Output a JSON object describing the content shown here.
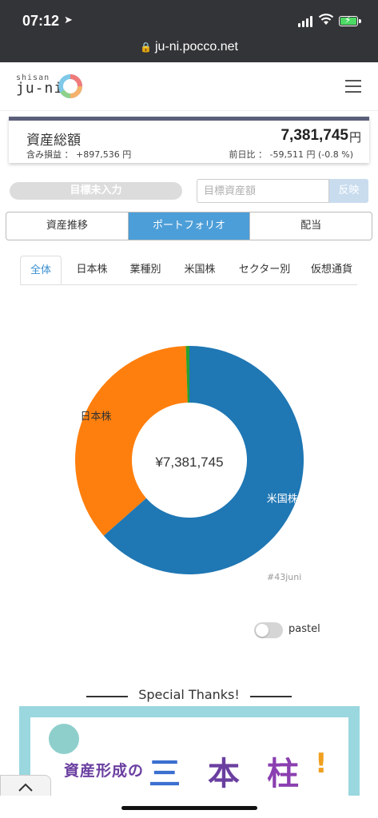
{
  "status_bar": {
    "time": "07:12"
  },
  "browser": {
    "url": "ju-ni.pocco.net"
  },
  "site": {
    "logo_small": "shisan",
    "logo_big": "ju-ni"
  },
  "summary": {
    "title": "資産総額",
    "total": "7,381,745",
    "currency": "円",
    "gain_label": "含み損益 ：",
    "gain_value": "+897,536 円",
    "day_label": "前日比 ：",
    "day_value": "-59,511 円 (-0.8 %)"
  },
  "target": {
    "badge": "目標未入力",
    "input_placeholder": "目標資産額",
    "button": "反映"
  },
  "main_tabs": [
    {
      "label": "資産推移",
      "active": false
    },
    {
      "label": "ポートフォリオ",
      "active": true
    },
    {
      "label": "配当",
      "active": false
    }
  ],
  "sub_tabs": [
    {
      "label": "全体",
      "active": true
    },
    {
      "label": "日本株",
      "active": false
    },
    {
      "label": "業種別",
      "active": false
    },
    {
      "label": "米国株",
      "active": false
    },
    {
      "label": "セクター別",
      "active": false
    },
    {
      "label": "仮想通貨",
      "active": false
    }
  ],
  "chart_data": {
    "type": "pie",
    "style": "donut",
    "center_label": "¥7,381,745",
    "slices": [
      {
        "label": "米国株",
        "share": 0.635,
        "color": "#1f77b4"
      },
      {
        "label": "日本株",
        "share": 0.36,
        "color": "#ff7f0e"
      },
      {
        "label": "",
        "share": 0.005,
        "color": "#2ca02c"
      }
    ]
  },
  "watermark": "#43juni",
  "pastel_toggle": {
    "label": "pastel",
    "on": false
  },
  "thanks": {
    "title": "Special Thanks!",
    "banner_text": "資産形成の",
    "banner_chars": [
      "三",
      "本",
      "柱",
      "!"
    ]
  },
  "icons": {
    "location": "location-arrow-icon",
    "lock": "lock-icon",
    "menu": "hamburger-menu-icon",
    "back_to_top": "chevron-up-icon"
  }
}
